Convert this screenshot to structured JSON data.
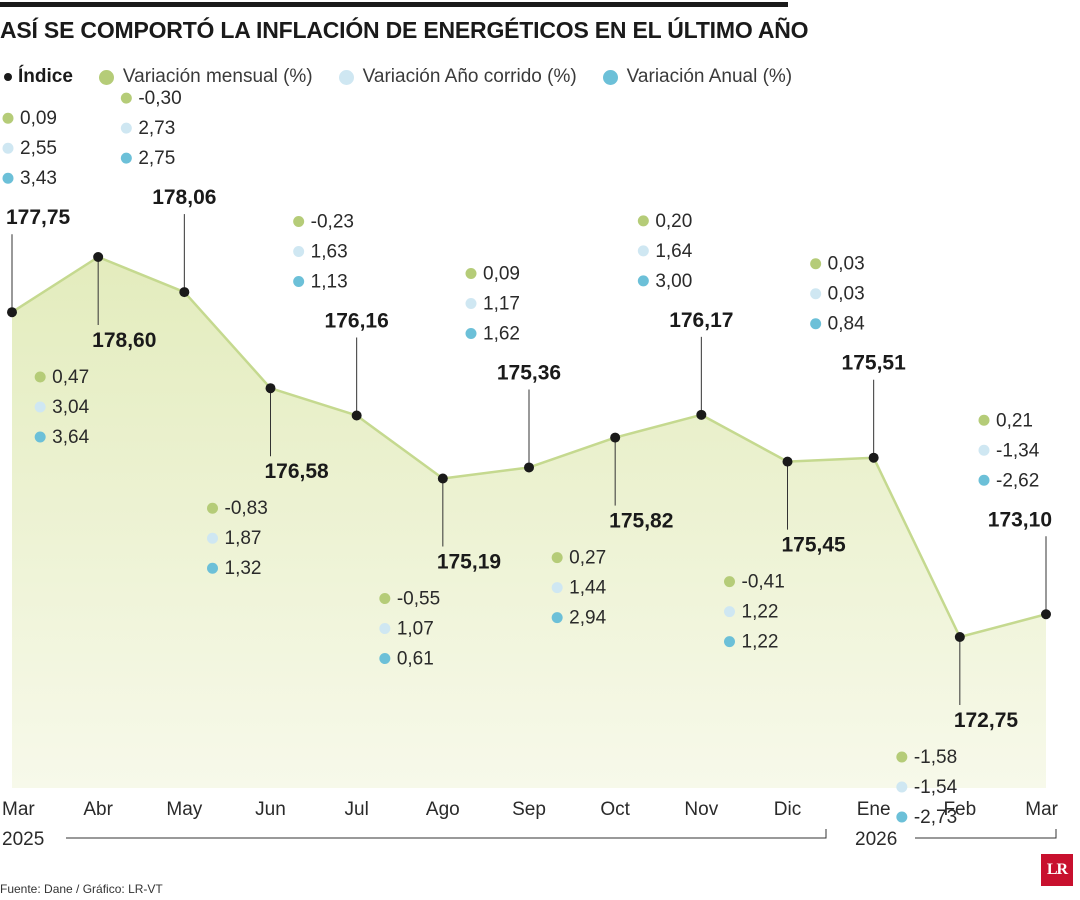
{
  "title": "ASÍ SE COMPORTÓ LA INFLACIÓN DE ENERGÉTICOS EN EL ÚLTIMO AÑO",
  "legend": [
    {
      "label": "Índice",
      "color": "#1a1a1a"
    },
    {
      "label": "Variación mensual (%)",
      "color": "#b5cc78"
    },
    {
      "label": "Variación Año corrido (%)",
      "color": "#cfe7f2"
    },
    {
      "label": "Variación Anual (%)",
      "color": "#6cc0d8"
    }
  ],
  "colors": {
    "line": "#c5d98f",
    "fill_top": "#e3ecbd",
    "fill_bottom": "#f7f9ea",
    "marker": "#1a1a1a"
  },
  "chart_data": {
    "type": "line",
    "title": "ASÍ SE COMPORTÓ LA INFLACIÓN DE ENERGÉTICOS EN EL ÚLTIMO AÑO",
    "categories": [
      "Mar",
      "Abr",
      "May",
      "Jun",
      "Jul",
      "Ago",
      "Sep",
      "Oct",
      "Nov",
      "Dic",
      "Ene",
      "Feb",
      "Mar"
    ],
    "year_labels": [
      {
        "label": "2025",
        "from": "Mar",
        "to": "Dic"
      },
      {
        "label": "2026",
        "from": "Ene",
        "to": "Mar"
      }
    ],
    "series": [
      {
        "name": "Índice",
        "values": [
          177.75,
          178.6,
          178.06,
          176.58,
          176.16,
          175.19,
          175.36,
          175.82,
          176.17,
          175.45,
          175.51,
          172.75,
          173.1
        ],
        "labels": [
          "177,75",
          "178,60",
          "178,06",
          "176,58",
          "176,16",
          "175,19",
          "175,36",
          "175,82",
          "176,17",
          "175,45",
          "175,51",
          "172,75",
          "173,10"
        ]
      },
      {
        "name": "Variación mensual (%)",
        "values": [
          0.09,
          0.47,
          -0.3,
          -0.83,
          -0.23,
          -0.55,
          0.09,
          0.27,
          0.2,
          -0.41,
          0.03,
          -1.58,
          0.21
        ],
        "labels": [
          "0,09",
          "0,47",
          "-0,30",
          "-0,83",
          "-0,23",
          "-0,55",
          "0,09",
          "0,27",
          "0,20",
          "-0,41",
          "0,03",
          "-1,58",
          "0,21"
        ]
      },
      {
        "name": "Variación Año corrido (%)",
        "values": [
          2.55,
          3.04,
          2.73,
          1.87,
          1.63,
          1.07,
          1.17,
          1.44,
          1.64,
          1.22,
          0.03,
          -1.54,
          -1.34
        ],
        "labels": [
          "2,55",
          "3,04",
          "2,73",
          "1,87",
          "1,63",
          "1,07",
          "1,17",
          "1,44",
          "1,64",
          "1,22",
          "0,03",
          "-1,54",
          "-1,34"
        ]
      },
      {
        "name": "Variación Anual (%)",
        "values": [
          3.43,
          3.64,
          2.75,
          1.32,
          1.13,
          0.61,
          1.62,
          2.94,
          3.0,
          1.22,
          0.84,
          -2.73,
          -2.62
        ],
        "labels": [
          "3,43",
          "3,64",
          "2,75",
          "1,32",
          "1,13",
          "0,61",
          "1,62",
          "2,94",
          "3,00",
          "1,22",
          "0,84",
          "-2,73",
          "-2,62"
        ]
      }
    ],
    "annotation_placement": [
      "above",
      "below",
      "above",
      "below",
      "above",
      "below",
      "above",
      "below",
      "above",
      "below",
      "above",
      "below",
      "above"
    ]
  },
  "source": "Fuente: Dane / Gráfico: LR-VT",
  "logo": "LR"
}
